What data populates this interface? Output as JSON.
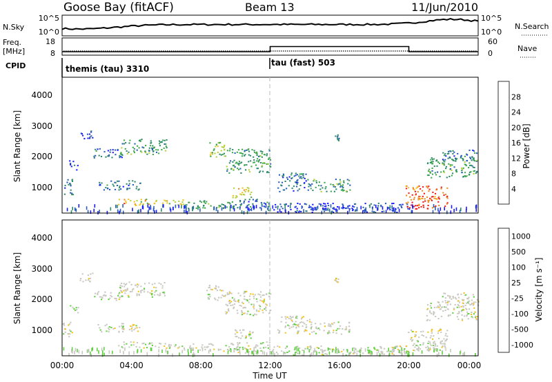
{
  "header": {
    "station": "Goose Bay (fitACF)",
    "beam": "Beam 13",
    "date": "11/Jun/2010"
  },
  "noise_panel": {
    "left_label": "N.Sky",
    "left_ticks": [
      "10^5",
      "10^0"
    ],
    "right_label": "N.Search",
    "right_ticks": [
      "10^5",
      "10^0"
    ]
  },
  "freq_panel": {
    "left_label_1": "Freq.",
    "left_label_2": "[MHz]",
    "left_ticks": [
      "18",
      "8"
    ],
    "right_label": "Nave",
    "right_ticks": [
      "60",
      "0"
    ]
  },
  "cpid": {
    "label": "CPID",
    "segments": [
      {
        "name": "themis (tau) 3310",
        "start_h": 0,
        "end_h": 12
      },
      {
        "name": "tau (fast) 503",
        "start_h": 12,
        "end_h": 24
      }
    ]
  },
  "time_axis": {
    "label": "Time UT",
    "ticks": [
      "00:00",
      "04:00",
      "08:00",
      "12:00",
      "16:00",
      "20:00",
      "00:00"
    ]
  },
  "range_axis": {
    "label": "Slant Range [km]",
    "ticks": [
      "1000",
      "2000",
      "3000",
      "4000"
    ]
  },
  "power_scale": {
    "label": "Power [dB]",
    "ticks": [
      "4",
      "8",
      "12",
      "16",
      "20",
      "24",
      "28"
    ],
    "colors": [
      "#1a1aff",
      "#2a5db8",
      "#2f8a6a",
      "#3fa84a",
      "#b4d13a",
      "#f5c21b",
      "#f08a1e",
      "#ee1c1c"
    ]
  },
  "velocity_scale": {
    "label": "Velocity [m s⁻¹]",
    "ticks": [
      "1000",
      "500",
      "100",
      "25",
      "-25",
      "-100",
      "-500",
      "-1000"
    ],
    "colors": [
      "#2233bb",
      "#2f6fa7",
      "#3a9a4a",
      "#5fd040",
      "#c8c8c0",
      "#f5c21b",
      "#f08a1e",
      "#ee1c1c"
    ]
  },
  "chart_data": {
    "type": "heatmap",
    "x_range_hours": [
      0,
      24
    ],
    "y_range_km": [
      180,
      4600
    ],
    "frequency": [
      {
        "start_h": 0,
        "end_h": 12,
        "freq_mhz": 10
      },
      {
        "start_h": 12,
        "end_h": 20,
        "freq_mhz": 13
      },
      {
        "start_h": 20,
        "end_h": 24,
        "freq_mhz": 10
      }
    ],
    "power_patches": [
      {
        "t0": 0.0,
        "t1": 0.6,
        "r0": 800,
        "r1": 1300,
        "level": 8
      },
      {
        "t0": 0.4,
        "t1": 0.9,
        "r0": 1600,
        "r1": 1900,
        "level": 4
      },
      {
        "t0": 1.0,
        "t1": 1.8,
        "r0": 2600,
        "r1": 2900,
        "level": 4
      },
      {
        "t0": 1.8,
        "t1": 3.5,
        "r0": 2000,
        "r1": 2300,
        "level": 8
      },
      {
        "t0": 3.3,
        "t1": 6.0,
        "r0": 2100,
        "r1": 2600,
        "level": 12
      },
      {
        "t0": 2.0,
        "t1": 4.5,
        "r0": 950,
        "r1": 1250,
        "level": 8
      },
      {
        "t0": 3.2,
        "t1": 4.2,
        "r0": 450,
        "r1": 650,
        "level": 24
      },
      {
        "t0": 4.2,
        "t1": 7.0,
        "r0": 450,
        "r1": 650,
        "level": 20
      },
      {
        "t0": 7.0,
        "t1": 10.2,
        "r0": 350,
        "r1": 600,
        "level": 12
      },
      {
        "t0": 8.3,
        "t1": 9.4,
        "r0": 2000,
        "r1": 2500,
        "level": 16
      },
      {
        "t0": 9.4,
        "t1": 12.0,
        "r0": 1500,
        "r1": 2300,
        "level": 12
      },
      {
        "t0": 9.8,
        "t1": 11.0,
        "r0": 700,
        "r1": 1050,
        "level": 20
      },
      {
        "t0": 10.0,
        "t1": 12.0,
        "r0": 280,
        "r1": 650,
        "level": 8
      },
      {
        "t0": 12.0,
        "t1": 20.0,
        "r0": 220,
        "r1": 520,
        "level": 4
      },
      {
        "t0": 12.4,
        "t1": 14.3,
        "r0": 900,
        "r1": 1500,
        "level": 8
      },
      {
        "t0": 14.3,
        "t1": 16.6,
        "r0": 900,
        "r1": 1300,
        "level": 12
      },
      {
        "t0": 15.7,
        "t1": 16.0,
        "r0": 2550,
        "r1": 2750,
        "level": 8
      },
      {
        "t0": 19.8,
        "t1": 22.2,
        "r0": 330,
        "r1": 1100,
        "level": 28
      },
      {
        "t0": 21.0,
        "t1": 24.0,
        "r0": 1350,
        "r1": 2000,
        "level": 12
      },
      {
        "t0": 21.9,
        "t1": 24.0,
        "r0": 1900,
        "r1": 2250,
        "level": 8
      }
    ]
  }
}
